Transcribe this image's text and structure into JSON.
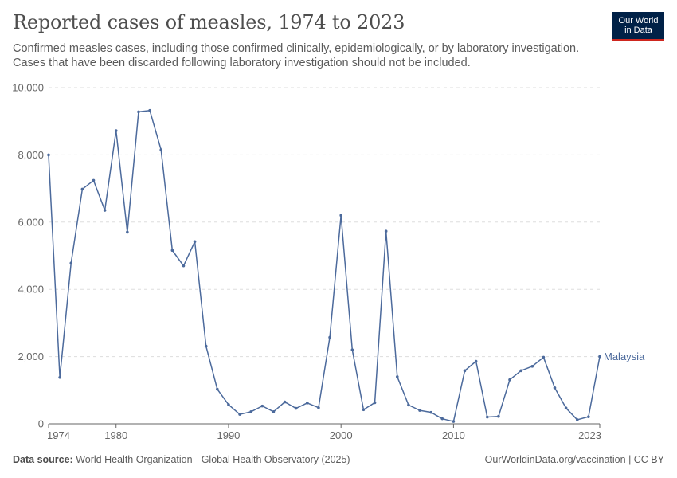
{
  "header": {
    "title": "Reported cases of measles, 1974 to 2023",
    "subtitle": "Confirmed measles cases, including those confirmed clinically, epidemiologically, or by laboratory investigation. Cases that have been discarded following laboratory investigation should not be included."
  },
  "logo": {
    "line1": "Our World",
    "line2": "in Data"
  },
  "footer": {
    "source_label": "Data source:",
    "source_text": "World Health Organization - Global Health Observatory (2025)",
    "link": "OurWorldinData.org/vaccination | CC BY"
  },
  "colors": {
    "series": "#4c6a9c",
    "grid": "#dddddd",
    "axis": "#666666"
  },
  "chart_data": {
    "type": "line",
    "title": "Reported cases of measles, 1974 to 2023",
    "xlim": [
      1974,
      2023
    ],
    "ylim": [
      0,
      10000
    ],
    "y_ticks": [
      0,
      2000,
      4000,
      6000,
      8000,
      10000
    ],
    "y_tick_labels": [
      "0",
      "2,000",
      "4,000",
      "6,000",
      "8,000",
      "10,000"
    ],
    "x_ticks": [
      1974,
      1980,
      1990,
      2000,
      2010,
      2023
    ],
    "x_tick_labels": [
      "1974",
      "1980",
      "1990",
      "2000",
      "2010",
      "2023"
    ],
    "grid": "horizontal dashed",
    "series": [
      {
        "name": "Malaysia",
        "x": [
          1974,
          1975,
          1976,
          1977,
          1978,
          1979,
          1980,
          1981,
          1982,
          1983,
          1984,
          1985,
          1986,
          1987,
          1988,
          1989,
          1990,
          1991,
          1992,
          1993,
          1994,
          1995,
          1996,
          1997,
          1998,
          1999,
          2000,
          2001,
          2002,
          2003,
          2004,
          2005,
          2006,
          2007,
          2008,
          2009,
          2010,
          2011,
          2012,
          2013,
          2014,
          2015,
          2016,
          2017,
          2018,
          2019,
          2020,
          2021,
          2022,
          2023
        ],
        "y": [
          8000,
          1380,
          4780,
          6980,
          7240,
          6350,
          8720,
          5700,
          9280,
          9320,
          8150,
          5160,
          4700,
          5420,
          2310,
          1030,
          570,
          280,
          360,
          530,
          360,
          650,
          460,
          620,
          480,
          2570,
          6200,
          2200,
          420,
          630,
          5730,
          1400,
          560,
          400,
          340,
          150,
          70,
          1580,
          1860,
          200,
          220,
          1310,
          1580,
          1710,
          1980,
          1070,
          470,
          120,
          210,
          2000
        ]
      }
    ]
  }
}
